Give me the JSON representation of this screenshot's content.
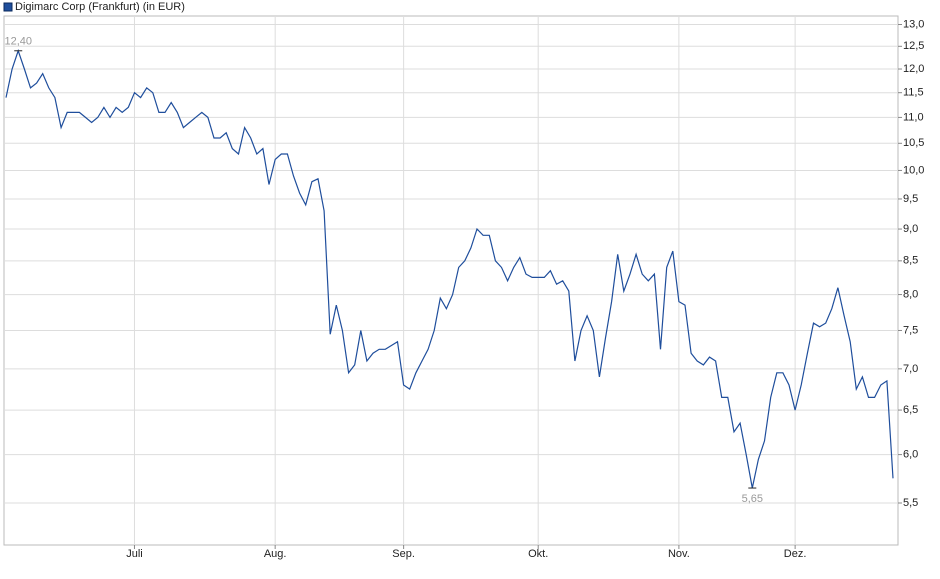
{
  "chart_data": {
    "type": "line",
    "log_scale": true,
    "grid": true,
    "legend": "top-left",
    "ylim": [
      5.1,
      13.2
    ],
    "yticks": [
      {
        "value": 5.5,
        "label": "5,5"
      },
      {
        "value": 6,
        "label": "6,0"
      },
      {
        "value": 6.5,
        "label": "6,5"
      },
      {
        "value": 7,
        "label": "7,0"
      },
      {
        "value": 7.5,
        "label": "7,5"
      },
      {
        "value": 8,
        "label": "8,0"
      },
      {
        "value": 8.5,
        "label": "8,5"
      },
      {
        "value": 9,
        "label": "9,0"
      },
      {
        "value": 9.5,
        "label": "9,5"
      },
      {
        "value": 10,
        "label": "10,0"
      },
      {
        "value": 10.5,
        "label": "10,5"
      },
      {
        "value": 11,
        "label": "11,0"
      },
      {
        "value": 11.5,
        "label": "11,5"
      },
      {
        "value": 12,
        "label": "12,0"
      },
      {
        "value": 12.5,
        "label": "12,5"
      },
      {
        "value": 13,
        "label": "13,0"
      }
    ],
    "categories": [
      null,
      null,
      null,
      null,
      null,
      null,
      null,
      null,
      null,
      null,
      null,
      null,
      null,
      null,
      null,
      null,
      null,
      null,
      null,
      null,
      null,
      "Juli",
      null,
      null,
      null,
      null,
      null,
      null,
      null,
      null,
      null,
      null,
      null,
      null,
      null,
      null,
      null,
      null,
      null,
      null,
      null,
      null,
      null,
      null,
      "Aug.",
      null,
      null,
      null,
      null,
      null,
      null,
      null,
      null,
      null,
      null,
      null,
      null,
      null,
      null,
      null,
      null,
      null,
      null,
      null,
      null,
      "Sep.",
      null,
      null,
      null,
      null,
      null,
      null,
      null,
      null,
      null,
      null,
      null,
      null,
      null,
      null,
      null,
      null,
      null,
      null,
      null,
      null,
      null,
      "Okt.",
      null,
      null,
      null,
      null,
      null,
      null,
      null,
      null,
      null,
      null,
      null,
      null,
      null,
      null,
      null,
      null,
      null,
      null,
      null,
      null,
      null,
      null,
      "Nov.",
      null,
      null,
      null,
      null,
      null,
      null,
      null,
      null,
      null,
      null,
      null,
      null,
      null,
      null,
      null,
      null,
      null,
      null,
      "Dez.",
      null,
      null,
      null,
      null,
      null,
      null,
      null,
      null,
      null,
      null,
      null,
      null,
      null,
      null,
      null,
      null
    ],
    "series": [
      {
        "name": "Digimarc Corp (Frankfurt) (in EUR)",
        "color": "#1f4e9c",
        "values": [
          11.4,
          12.0,
          12.4,
          12.0,
          11.6,
          11.7,
          11.9,
          11.6,
          11.4,
          10.8,
          11.1,
          11.1,
          11.1,
          11.0,
          10.9,
          11.0,
          11.2,
          11.0,
          11.2,
          11.1,
          11.2,
          11.5,
          11.4,
          11.6,
          11.5,
          11.1,
          11.1,
          11.3,
          11.1,
          10.8,
          10.9,
          11.0,
          11.1,
          11.0,
          10.6,
          10.6,
          10.7,
          10.4,
          10.3,
          10.8,
          10.6,
          10.3,
          10.4,
          9.75,
          10.2,
          10.3,
          10.3,
          9.9,
          9.6,
          9.4,
          9.8,
          9.85,
          9.3,
          7.45,
          7.85,
          7.5,
          6.95,
          7.05,
          7.5,
          7.1,
          7.2,
          7.25,
          7.25,
          7.3,
          7.35,
          6.8,
          6.75,
          6.95,
          7.1,
          7.25,
          7.5,
          7.95,
          7.8,
          8.0,
          8.4,
          8.5,
          8.7,
          9.0,
          8.9,
          8.9,
          8.5,
          8.4,
          8.2,
          8.4,
          8.55,
          8.3,
          8.25,
          8.25,
          8.25,
          8.35,
          8.15,
          8.2,
          8.05,
          7.1,
          7.5,
          7.7,
          7.5,
          6.9,
          7.4,
          7.9,
          8.6,
          8.05,
          8.3,
          8.6,
          8.3,
          8.2,
          8.3,
          7.25,
          8.4,
          8.65,
          7.9,
          7.85,
          7.2,
          7.1,
          7.05,
          7.15,
          7.1,
          6.65,
          6.65,
          6.25,
          6.35,
          6.0,
          5.65,
          5.95,
          6.15,
          6.65,
          6.95,
          6.95,
          6.8,
          6.5,
          6.8,
          7.2,
          7.6,
          7.55,
          7.6,
          7.8,
          8.1,
          7.7,
          7.35,
          6.75,
          6.9,
          6.65,
          6.65,
          6.8,
          6.85,
          5.75
        ],
        "value_labels": [
          null,
          null,
          "12,40",
          null,
          null,
          null,
          null,
          null,
          null,
          null,
          null,
          null,
          null,
          null,
          null,
          null,
          null,
          null,
          null,
          null,
          null,
          null,
          null,
          null,
          null,
          null,
          null,
          null,
          null,
          null,
          null,
          null,
          null,
          null,
          null,
          null,
          null,
          null,
          null,
          null,
          null,
          null,
          null,
          null,
          null,
          null,
          null,
          null,
          null,
          null,
          null,
          null,
          null,
          null,
          null,
          null,
          null,
          null,
          null,
          null,
          null,
          null,
          null,
          null,
          null,
          null,
          null,
          null,
          null,
          null,
          null,
          null,
          null,
          null,
          null,
          null,
          null,
          null,
          null,
          null,
          null,
          null,
          null,
          null,
          null,
          null,
          null,
          null,
          null,
          null,
          null,
          null,
          null,
          null,
          null,
          null,
          null,
          null,
          null,
          null,
          null,
          null,
          null,
          null,
          null,
          null,
          null,
          null,
          null,
          null,
          null,
          null,
          null,
          null,
          null,
          null,
          null,
          null,
          null,
          null,
          null,
          null,
          "5,65",
          null,
          null,
          null,
          null,
          null,
          null,
          null,
          null,
          null,
          null,
          null,
          null,
          null,
          null,
          null,
          null,
          null,
          null,
          null,
          null,
          null,
          null,
          null
        ]
      }
    ]
  }
}
